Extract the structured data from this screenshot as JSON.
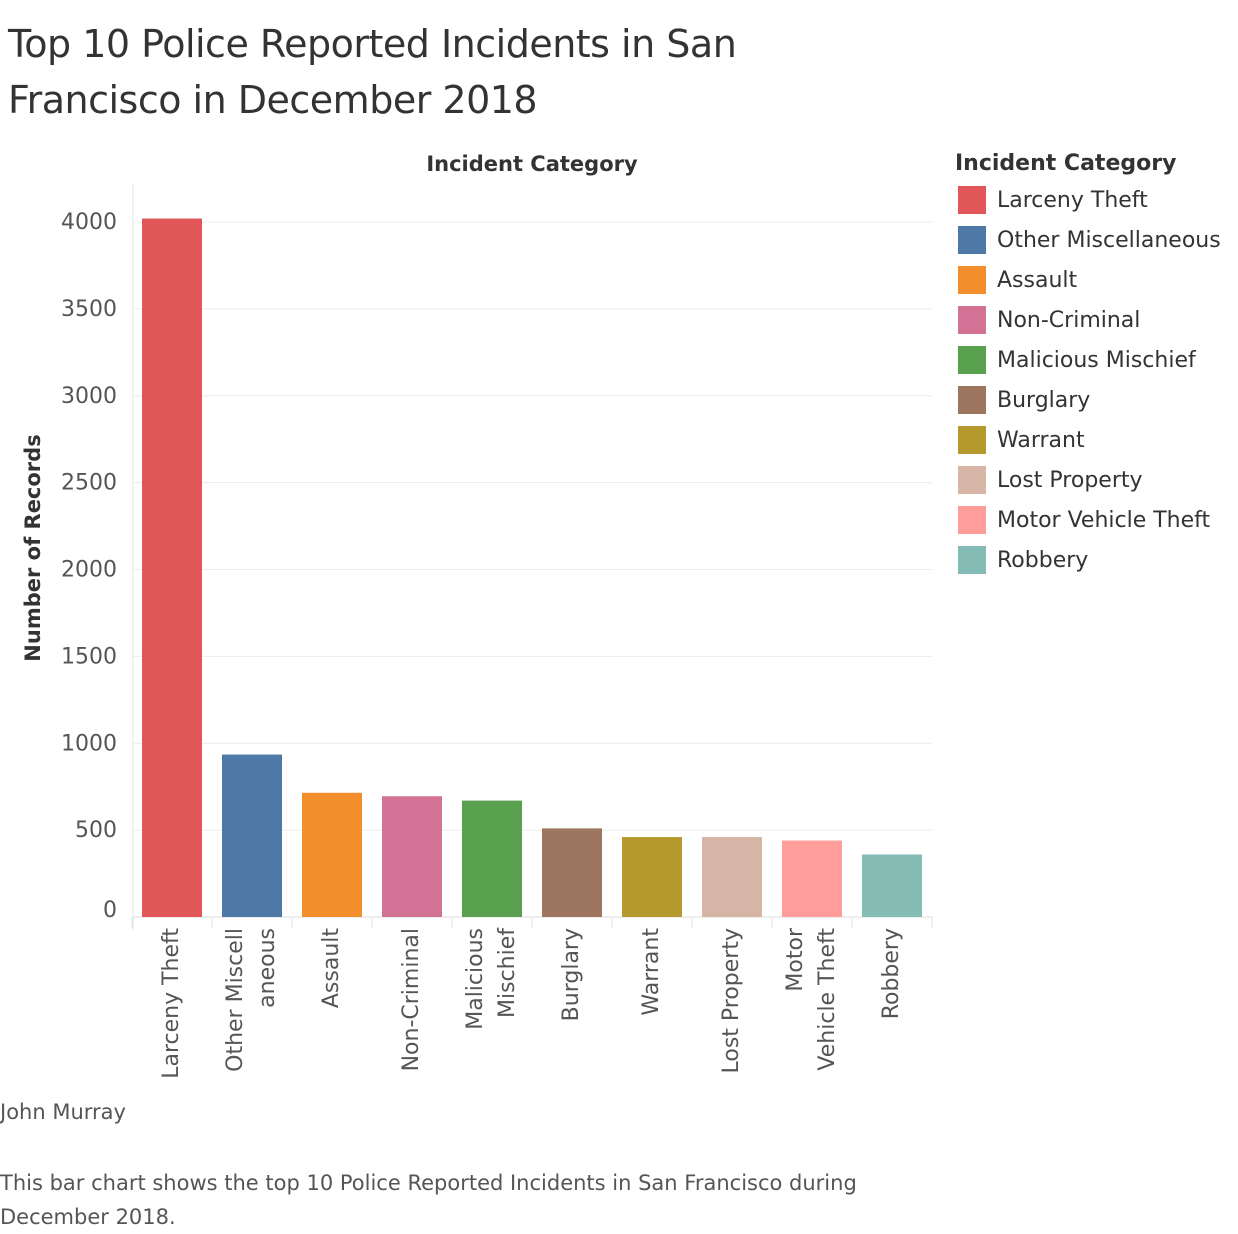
{
  "title": "Top 10 Police Reported Incidents in San Francisco in December 2018",
  "legend": {
    "title": "Incident Category"
  },
  "author": "John Murray",
  "caption": "This bar chart shows the top 10 Police Reported Incidents in San Francisco during December 2018.",
  "chart_data": {
    "type": "bar",
    "title": "Top 10 Police Reported Incidents in San Francisco in December 2018",
    "xlabel": "Incident Category",
    "ylabel": "Number of Records",
    "ylim": [
      0,
      4200
    ],
    "yticks": [
      0,
      500,
      1000,
      1500,
      2000,
      2500,
      3000,
      3500,
      4000
    ],
    "grid": "horizontal",
    "legend_position": "right",
    "categories": [
      "Larceny Theft",
      "Other Miscellaneous",
      "Assault",
      "Non-Criminal",
      "Malicious Mischief",
      "Burglary",
      "Warrant",
      "Lost Property",
      "Motor Vehicle Theft",
      "Robbery"
    ],
    "tick_labels": [
      [
        "Larceny Theft"
      ],
      [
        "Other Miscell",
        "aneous"
      ],
      [
        "Assault"
      ],
      [
        "Non-Criminal"
      ],
      [
        "Malicious",
        "Mischief"
      ],
      [
        "Burglary"
      ],
      [
        "Warrant"
      ],
      [
        "Lost Property"
      ],
      [
        "Motor",
        "Vehicle Theft"
      ],
      [
        "Robbery"
      ]
    ],
    "values": [
      4020,
      935,
      715,
      695,
      670,
      510,
      460,
      460,
      440,
      360
    ],
    "colors": [
      "#e15759",
      "#4e79a7",
      "#f28e2b",
      "#d37295",
      "#59a14f",
      "#9d7660",
      "#b6992d",
      "#d7b5a6",
      "#ff9d9a",
      "#86bcb6"
    ]
  }
}
